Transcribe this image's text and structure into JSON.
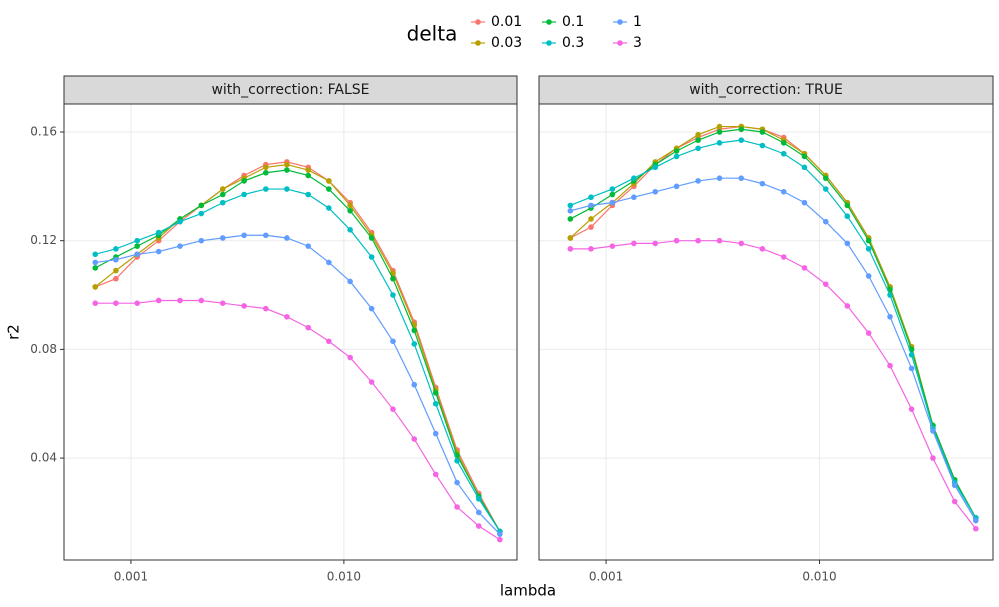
{
  "legend_title": "delta",
  "xlabel": "lambda",
  "ylabel": "r2",
  "chart_data": [
    {
      "type": "line",
      "title": "with_correction: FALSE",
      "xscale": "log",
      "grid": true,
      "x": [
        0.00068,
        0.00085,
        0.00107,
        0.00135,
        0.0017,
        0.00214,
        0.0027,
        0.0034,
        0.0043,
        0.0054,
        0.0068,
        0.0085,
        0.0107,
        0.0135,
        0.017,
        0.0214,
        0.027,
        0.034,
        0.043,
        0.054
      ],
      "xlim": [
        0.000485,
        0.065
      ],
      "xticks": [
        0.001,
        {
          "value": 0.01,
          "label": "0.010"
        }
      ],
      "ylim": [
        0.0025,
        0.1703
      ],
      "yticks": [
        0.04,
        0.08,
        0.12,
        0.16
      ],
      "series": [
        {
          "name": "0.01",
          "color": "#F8766D",
          "values": [
            0.103,
            0.106,
            0.114,
            0.12,
            0.127,
            0.133,
            0.139,
            0.144,
            0.148,
            0.149,
            0.147,
            0.142,
            0.134,
            0.123,
            0.109,
            0.09,
            0.066,
            0.043,
            0.027,
            0.013
          ]
        },
        {
          "name": "0.03",
          "color": "#B79F00",
          "values": [
            0.103,
            0.109,
            0.115,
            0.121,
            0.128,
            0.133,
            0.139,
            0.143,
            0.147,
            0.148,
            0.146,
            0.142,
            0.133,
            0.122,
            0.108,
            0.089,
            0.065,
            0.042,
            0.026,
            0.013
          ]
        },
        {
          "name": "0.1",
          "color": "#00BA38",
          "values": [
            0.11,
            0.114,
            0.118,
            0.122,
            0.128,
            0.133,
            0.137,
            0.142,
            0.145,
            0.146,
            0.144,
            0.139,
            0.131,
            0.121,
            0.106,
            0.087,
            0.064,
            0.041,
            0.026,
            0.013
          ]
        },
        {
          "name": "0.3",
          "color": "#00BFC4",
          "values": [
            0.115,
            0.117,
            0.12,
            0.123,
            0.127,
            0.13,
            0.134,
            0.137,
            0.139,
            0.139,
            0.137,
            0.132,
            0.124,
            0.114,
            0.1,
            0.082,
            0.06,
            0.039,
            0.025,
            0.013
          ]
        },
        {
          "name": "1",
          "color": "#619CFF",
          "values": [
            0.112,
            0.113,
            0.115,
            0.116,
            0.118,
            0.12,
            0.121,
            0.122,
            0.122,
            0.121,
            0.118,
            0.112,
            0.105,
            0.095,
            0.083,
            0.067,
            0.049,
            0.031,
            0.02,
            0.012
          ]
        },
        {
          "name": "3",
          "color": "#F564E3",
          "values": [
            0.097,
            0.097,
            0.097,
            0.098,
            0.098,
            0.098,
            0.097,
            0.096,
            0.095,
            0.092,
            0.088,
            0.083,
            0.077,
            0.068,
            0.058,
            0.047,
            0.034,
            0.022,
            0.015,
            0.01
          ]
        }
      ]
    },
    {
      "type": "line",
      "title": "with_correction: TRUE",
      "xscale": "log",
      "grid": true,
      "x": [
        0.00068,
        0.00085,
        0.00107,
        0.00135,
        0.0017,
        0.00214,
        0.0027,
        0.0034,
        0.0043,
        0.0054,
        0.0068,
        0.0085,
        0.0107,
        0.0135,
        0.017,
        0.0214,
        0.027,
        0.034,
        0.043,
        0.054
      ],
      "xlim": [
        0.000485,
        0.065
      ],
      "xticks": [
        0.001,
        {
          "value": 0.01,
          "label": "0.010"
        }
      ],
      "ylim": [
        0.0025,
        0.1703
      ],
      "yticks": [
        0.04,
        0.08,
        0.12,
        0.16
      ],
      "series": [
        {
          "name": "0.01",
          "color": "#F8766D",
          "values": [
            0.121,
            0.125,
            0.133,
            0.14,
            0.148,
            0.154,
            0.158,
            0.161,
            0.162,
            0.161,
            0.158,
            0.152,
            0.144,
            0.134,
            0.121,
            0.103,
            0.08,
            0.052,
            0.032,
            0.018
          ]
        },
        {
          "name": "0.03",
          "color": "#B79F00",
          "values": [
            0.121,
            0.128,
            0.134,
            0.141,
            0.149,
            0.154,
            0.159,
            0.162,
            0.162,
            0.161,
            0.157,
            0.152,
            0.144,
            0.134,
            0.121,
            0.103,
            0.081,
            0.052,
            0.032,
            0.018
          ]
        },
        {
          "name": "0.1",
          "color": "#00BA38",
          "values": [
            0.128,
            0.132,
            0.137,
            0.142,
            0.148,
            0.153,
            0.157,
            0.16,
            0.161,
            0.16,
            0.156,
            0.151,
            0.143,
            0.133,
            0.12,
            0.102,
            0.08,
            0.052,
            0.032,
            0.018
          ]
        },
        {
          "name": "0.3",
          "color": "#00BFC4",
          "values": [
            0.133,
            0.136,
            0.139,
            0.143,
            0.147,
            0.151,
            0.154,
            0.156,
            0.157,
            0.155,
            0.152,
            0.147,
            0.139,
            0.129,
            0.117,
            0.1,
            0.078,
            0.051,
            0.031,
            0.018
          ]
        },
        {
          "name": "1",
          "color": "#619CFF",
          "values": [
            0.131,
            0.133,
            0.134,
            0.136,
            0.138,
            0.14,
            0.142,
            0.143,
            0.143,
            0.141,
            0.138,
            0.134,
            0.127,
            0.119,
            0.107,
            0.092,
            0.073,
            0.05,
            0.03,
            0.017
          ]
        },
        {
          "name": "3",
          "color": "#F564E3",
          "values": [
            0.117,
            0.117,
            0.118,
            0.119,
            0.119,
            0.12,
            0.12,
            0.12,
            0.119,
            0.117,
            0.114,
            0.11,
            0.104,
            0.096,
            0.086,
            0.074,
            0.058,
            0.04,
            0.024,
            0.014
          ]
        }
      ]
    }
  ]
}
